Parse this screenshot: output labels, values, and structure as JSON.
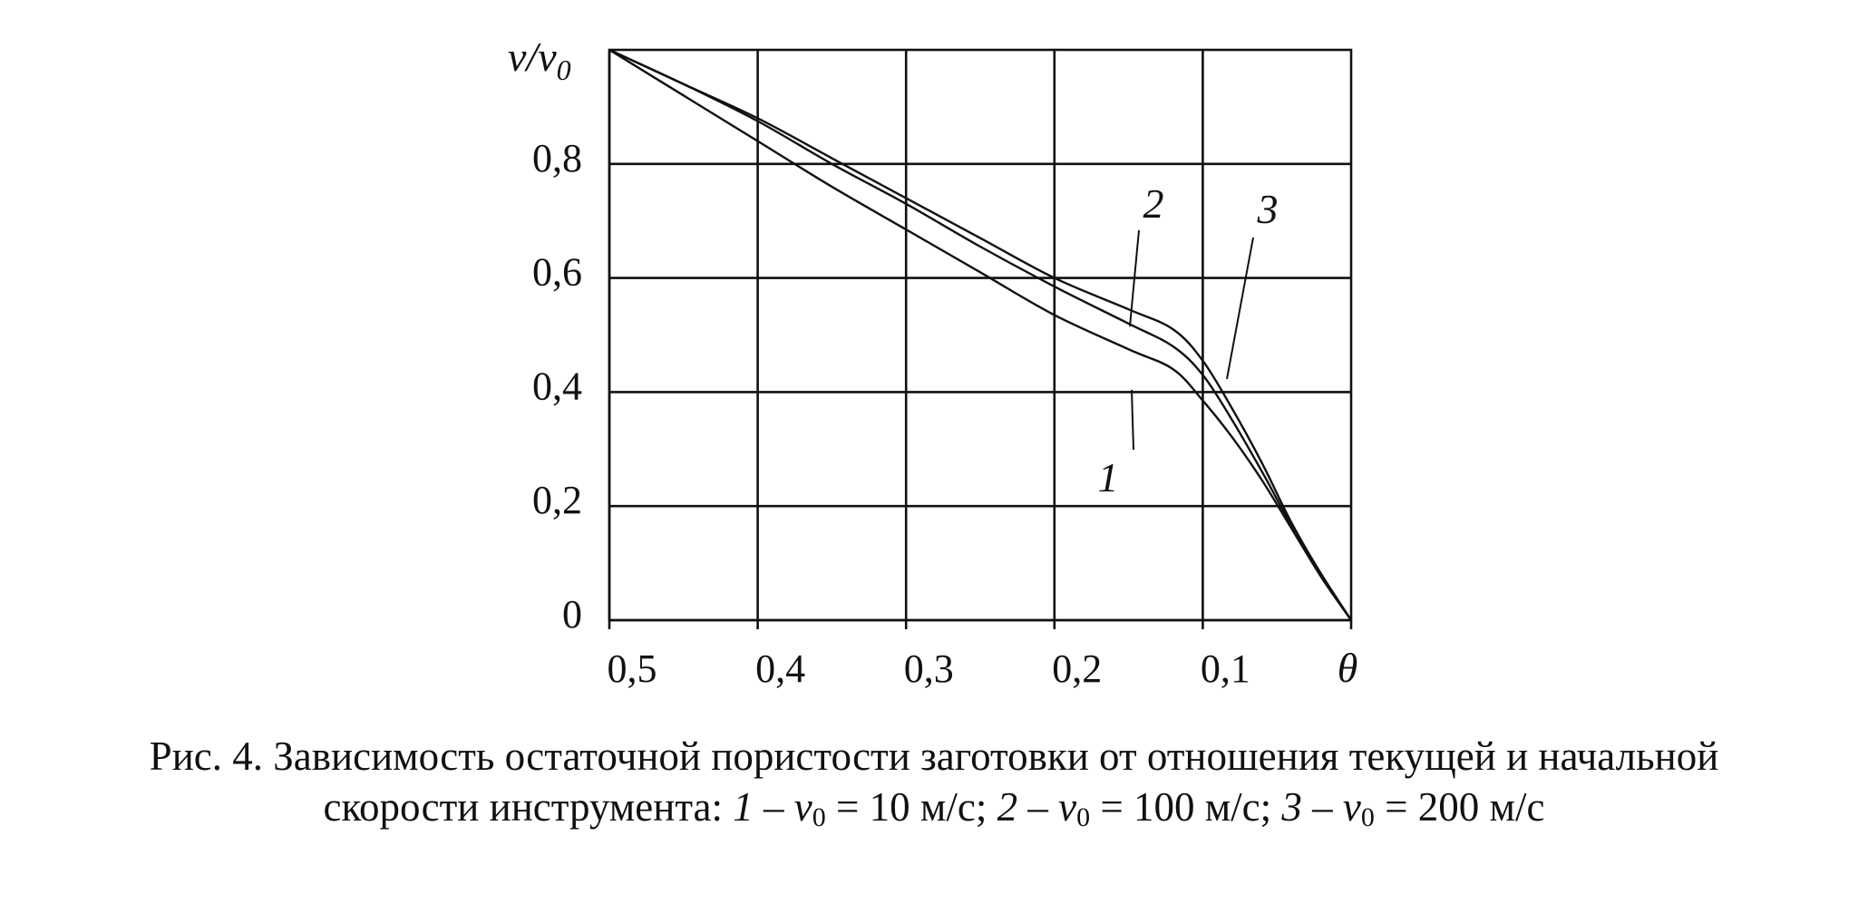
{
  "chart_data": {
    "type": "line",
    "xlabel": "θ",
    "ylabel": "v/v₀",
    "ylabel_parts": {
      "main": "v/v",
      "sub": "0"
    },
    "xlim": [
      0.5,
      0
    ],
    "ylim": [
      0,
      1
    ],
    "grid": true,
    "x_ticks": [
      "0,5",
      "0,4",
      "0,3",
      "0,2",
      "0,1"
    ],
    "x_tick_values": [
      0.5,
      0.4,
      0.3,
      0.2,
      0.1
    ],
    "y_ticks": [
      "0,8",
      "0,6",
      "0,4",
      "0,2",
      "0"
    ],
    "y_tick_values": [
      0.8,
      0.6,
      0.4,
      0.2,
      0
    ],
    "series": [
      {
        "name": "1",
        "x": [
          0.5,
          0.45,
          0.4,
          0.35,
          0.3,
          0.25,
          0.2,
          0.15,
          0.12,
          0.1,
          0.08,
          0.06,
          0.04,
          0.02,
          0
        ],
        "y": [
          1.0,
          0.92,
          0.84,
          0.76,
          0.685,
          0.61,
          0.535,
          0.475,
          0.44,
          0.385,
          0.32,
          0.245,
          0.16,
          0.075,
          0
        ]
      },
      {
        "name": "2",
        "x": [
          0.5,
          0.45,
          0.4,
          0.35,
          0.3,
          0.25,
          0.2,
          0.15,
          0.12,
          0.1,
          0.08,
          0.06,
          0.04,
          0.02,
          0
        ],
        "y": [
          1.0,
          0.94,
          0.875,
          0.8,
          0.73,
          0.655,
          0.585,
          0.52,
          0.48,
          0.43,
          0.35,
          0.26,
          0.165,
          0.08,
          0
        ]
      },
      {
        "name": "3",
        "x": [
          0.5,
          0.45,
          0.4,
          0.35,
          0.3,
          0.25,
          0.2,
          0.15,
          0.12,
          0.1,
          0.08,
          0.06,
          0.04,
          0.02,
          0
        ],
        "y": [
          1.0,
          0.94,
          0.88,
          0.81,
          0.74,
          0.67,
          0.6,
          0.545,
          0.51,
          0.455,
          0.37,
          0.275,
          0.17,
          0.08,
          0
        ]
      }
    ],
    "annotations": [
      "1",
      "2",
      "3"
    ]
  },
  "caption": {
    "line1": "Рис. 4. Зависимость остаточной пористости заготовки от отношения текущей и начальной",
    "line2_prefix": "скорости инструмента: ",
    "items": [
      {
        "num": "1",
        "var": "v",
        "sub": "0",
        "value": " = 10 м/с"
      },
      {
        "num": "2",
        "var": "v",
        "sub": "0",
        "value": " = 100 м/с"
      },
      {
        "num": "3",
        "var": "v",
        "sub": "0",
        "value": " = 200 м/с"
      }
    ],
    "dash": " – ",
    "separator": "; "
  }
}
